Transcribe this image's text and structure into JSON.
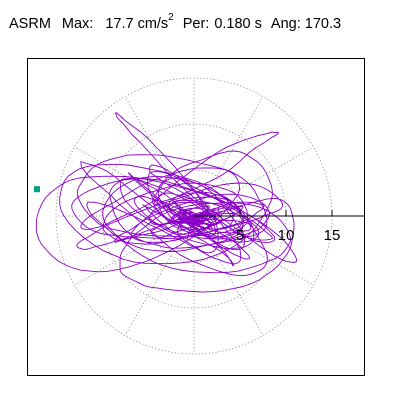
{
  "header": {
    "station": "ASRM",
    "max_label": "Max:",
    "max_value": "17.7",
    "max_unit": "cm/s",
    "max_unit_exp": "2",
    "per_label": "Per:",
    "per_value": "0.180 s",
    "ang_label": "Ang:",
    "ang_value": "170.3"
  },
  "chart_data": {
    "type": "line",
    "title": "",
    "xlabel": "",
    "ylabel": "",
    "polar_rings": [
      5,
      10,
      15
    ],
    "radial_ticks": [
      5,
      10,
      15
    ],
    "tick_labels": [
      "5",
      "10",
      "15"
    ],
    "rmax": 17.7,
    "angle_deg": 170.3,
    "grid": true,
    "colors": {
      "trace": "#8a00c8",
      "grid": "#888888",
      "marker": "#00a085"
    }
  }
}
